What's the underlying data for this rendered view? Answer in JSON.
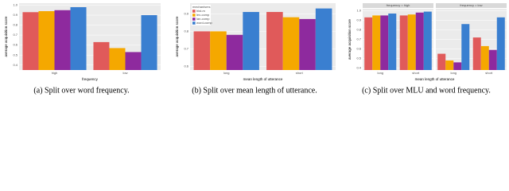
{
  "chart_data": [
    {
      "type": "bar",
      "ylabel": "average acquisition score",
      "xlabel": "frequency",
      "categories": [
        "high",
        "low"
      ],
      "series": [
        {
          "color": "#e05a5a",
          "values": [
            0.93,
            0.63
          ]
        },
        {
          "color": "#f5a800",
          "values": [
            0.94,
            0.57
          ]
        },
        {
          "color": "#8e2a9e",
          "values": [
            0.95,
            0.53
          ]
        },
        {
          "color": "#3a7fd0",
          "values": [
            0.98,
            0.9
          ]
        }
      ],
      "ylim": [
        0.35,
        1.02
      ],
      "yticks": [
        0.4,
        0.5,
        0.6,
        0.7,
        0.8,
        0.9,
        {
          "value": 1,
          "label": "1.0"
        }
      ],
      "grid": true,
      "caption": "(a) Split over word frequency."
    },
    {
      "type": "bar",
      "ylabel": "average acquisition score",
      "xlabel": "mean length of utterance",
      "categories": [
        "long",
        "short"
      ],
      "legend_title": "mechanisms",
      "legend": "top-left",
      "series": [
        {
          "name": "hist-m",
          "color": "#e05a5a",
          "values": [
            0.8,
            0.91
          ]
        },
        {
          "name": "lex-comp",
          "color": "#f5a800",
          "values": [
            0.8,
            0.88
          ]
        },
        {
          "name": "lan-comp",
          "color": "#8e2a9e",
          "values": [
            0.78,
            0.87
          ]
        },
        {
          "name": "word-comp",
          "color": "#3a7fd0",
          "values": [
            0.91,
            0.93
          ]
        }
      ],
      "ylim": [
        0.58,
        0.96
      ],
      "yticks": [
        0.6,
        0.7,
        0.8,
        0.9
      ],
      "grid": true,
      "caption": "(b) Split over mean length of utterance."
    },
    {
      "type": "bar",
      "ylabel": "average acquisition score",
      "xlabel": "mean length of utterance",
      "ylim": [
        0.38,
        1.02
      ],
      "yticks": [
        0.4,
        0.5,
        0.6,
        0.7,
        0.8,
        0.9,
        {
          "value": 1,
          "label": "1.0"
        }
      ],
      "grid": true,
      "facets": [
        {
          "title": "frequency = high",
          "categories": [
            "long",
            "short"
          ],
          "series": [
            {
              "color": "#e05a5a",
              "values": [
                0.93,
                0.95
              ]
            },
            {
              "color": "#f5a800",
              "values": [
                0.95,
                0.96
              ]
            },
            {
              "color": "#8e2a9e",
              "values": [
                0.95,
                0.98
              ]
            },
            {
              "color": "#3a7fd0",
              "values": [
                0.97,
                0.99
              ]
            }
          ]
        },
        {
          "title": "frequency = low",
          "categories": [
            "long",
            "short"
          ],
          "series": [
            {
              "color": "#e05a5a",
              "values": [
                0.55,
                0.72
              ]
            },
            {
              "color": "#f5a800",
              "values": [
                0.48,
                0.63
              ]
            },
            {
              "color": "#8e2a9e",
              "values": [
                0.46,
                0.59
              ]
            },
            {
              "color": "#3a7fd0",
              "values": [
                0.86,
                0.93
              ]
            }
          ]
        }
      ],
      "caption": "(c) Split over MLU and word frequency."
    }
  ]
}
